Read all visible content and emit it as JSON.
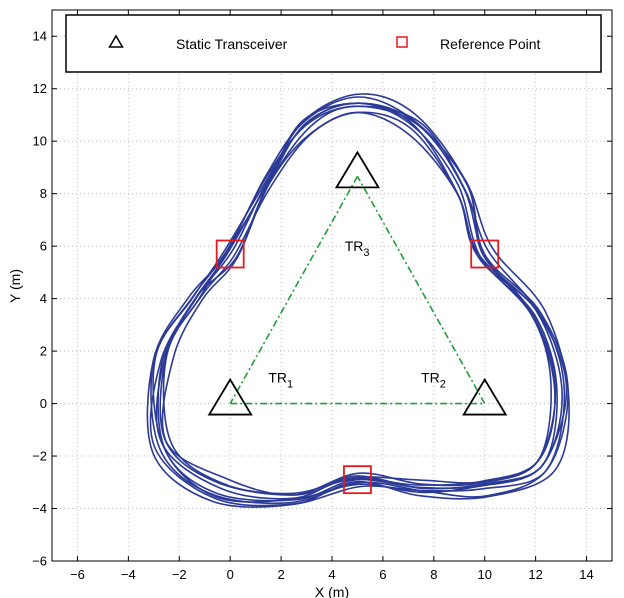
{
  "chart_data": {
    "type": "line",
    "title": "",
    "xlabel": "X (m)",
    "ylabel": "Y (m)",
    "xlim": [
      -7,
      15
    ],
    "ylim": [
      -6,
      15
    ],
    "xticks": [
      -6,
      -4,
      -2,
      0,
      2,
      4,
      6,
      8,
      10,
      12,
      14
    ],
    "yticks": [
      -6,
      -4,
      -2,
      0,
      2,
      4,
      6,
      8,
      10,
      12,
      14
    ],
    "grid": true,
    "legend": {
      "placement": "top",
      "entries": [
        {
          "label": "Static Transceiver",
          "marker": "triangle",
          "color": "#000000"
        },
        {
          "label": "Reference Point",
          "marker": "square",
          "color": "#e41a1c"
        }
      ]
    },
    "colors": {
      "trajectory": "#2b3a96",
      "triangle_edges": "#1f9e3a",
      "reference": "#e41a1c",
      "transceiver": "#000000"
    },
    "transceivers": [
      {
        "label": "TR",
        "sub": "1",
        "x": 0,
        "y": 0,
        "label_x": 1.5,
        "label_y": 1
      },
      {
        "label": "TR",
        "sub": "2",
        "x": 10,
        "y": 0,
        "label_x": 7.5,
        "label_y": 1
      },
      {
        "label": "TR",
        "sub": "3",
        "x": 5,
        "y": 8.66,
        "label_x": 4.5,
        "label_y": 6
      }
    ],
    "reference_points": [
      {
        "x": 0,
        "y": 5.7
      },
      {
        "x": 10,
        "y": 5.7
      },
      {
        "x": 5,
        "y": -2.9
      }
    ],
    "triangle_connections": [
      [
        0,
        1
      ],
      [
        1,
        2
      ],
      [
        2,
        0
      ]
    ],
    "trajectory": {
      "name": "",
      "control_points": [
        [
          5,
          11.4
        ],
        [
          7.3,
          10.6
        ],
        [
          9.1,
          8.2
        ],
        [
          10,
          5.7
        ],
        [
          12.1,
          3.4
        ],
        [
          13,
          0.5
        ],
        [
          12.3,
          -2.3
        ],
        [
          10,
          -3.2
        ],
        [
          7.5,
          -3.2
        ],
        [
          5,
          -2.9
        ],
        [
          2.5,
          -3.6
        ],
        [
          -0.5,
          -3.3
        ],
        [
          -2.7,
          -1.6
        ],
        [
          -2.7,
          1.8
        ],
        [
          -1.3,
          4
        ],
        [
          0,
          5.7
        ],
        [
          1.5,
          8.4
        ],
        [
          3,
          10.6
        ]
      ],
      "loops": 9
    }
  }
}
